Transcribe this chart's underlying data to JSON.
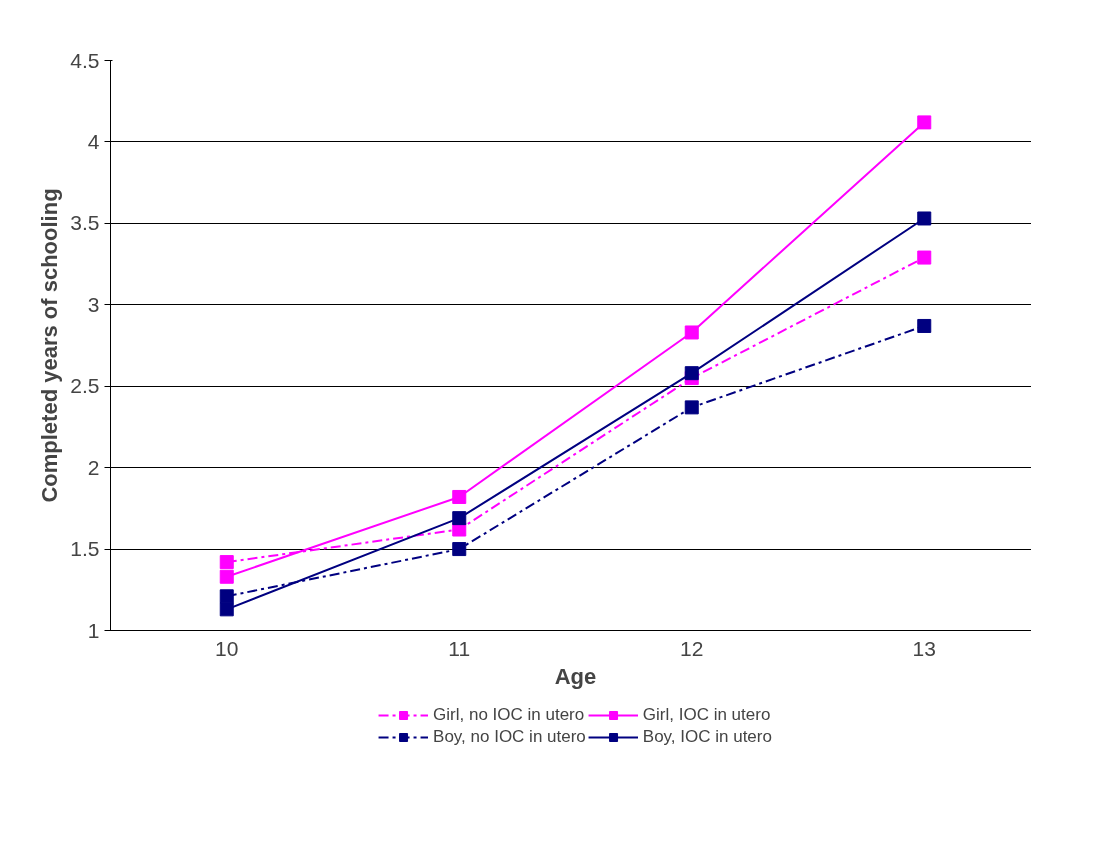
{
  "chart_data": {
    "type": "line",
    "xlabel": "Age",
    "ylabel": "Completed years of schooling",
    "categories": [
      "10",
      "11",
      "12",
      "13"
    ],
    "ylim": [
      1,
      4.5
    ],
    "yticks": [
      1,
      1.5,
      2,
      2.5,
      3,
      3.5,
      4,
      4.5
    ],
    "grid": "y",
    "legend": "bottom",
    "marker": "square",
    "series": [
      {
        "name": "Girl, no IOC in utero",
        "color": "#ff00ff",
        "line_style": "dashed",
        "values": [
          1.42,
          1.62,
          2.55,
          3.29
        ]
      },
      {
        "name": "Girl, IOC in utero",
        "color": "#ff00ff",
        "line_style": "solid",
        "values": [
          1.33,
          1.82,
          2.83,
          4.12
        ]
      },
      {
        "name": "Boy, no IOC in utero",
        "color": "#000080",
        "line_style": "dashed",
        "values": [
          1.21,
          1.5,
          2.37,
          2.87
        ]
      },
      {
        "name": "Boy, IOC in utero",
        "color": "#000080",
        "line_style": "solid",
        "values": [
          1.13,
          1.69,
          2.58,
          3.53
        ]
      }
    ]
  }
}
